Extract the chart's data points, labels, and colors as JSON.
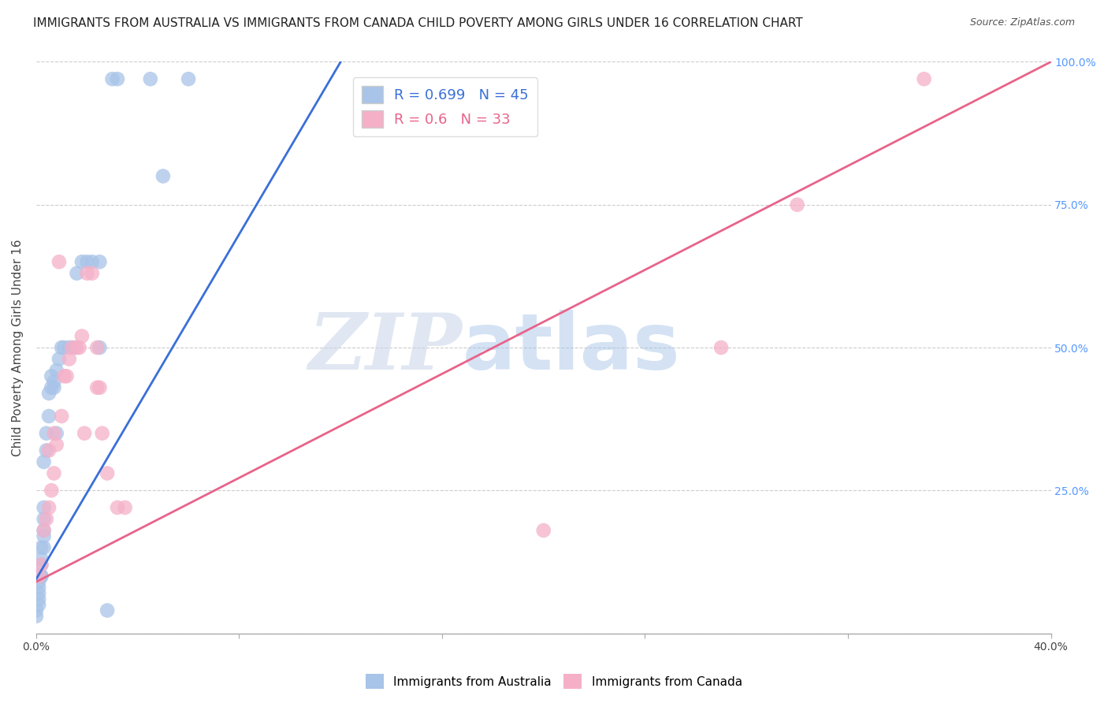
{
  "title": "IMMIGRANTS FROM AUSTRALIA VS IMMIGRANTS FROM CANADA CHILD POVERTY AMONG GIRLS UNDER 16 CORRELATION CHART",
  "source": "Source: ZipAtlas.com",
  "ylabel": "Child Poverty Among Girls Under 16",
  "xlim": [
    0.0,
    0.4
  ],
  "ylim": [
    0.0,
    1.0
  ],
  "xticks": [
    0.0,
    0.08,
    0.16,
    0.24,
    0.32,
    0.4
  ],
  "xticklabels": [
    "0.0%",
    "",
    "",
    "",
    "",
    "40.0%"
  ],
  "yticks": [
    0.0,
    0.25,
    0.5,
    0.75,
    1.0
  ],
  "australia_color": "#a8c4e8",
  "canada_color": "#f5b0c8",
  "trend_australia_color": "#3a6fd8",
  "trend_canada_color": "#e8638a",
  "watermark_zip": "ZIP",
  "watermark_atlas": "atlas",
  "R_australia": 0.699,
  "N_australia": 45,
  "R_canada": 0.6,
  "N_canada": 33,
  "australia_x": [
    0.0,
    0.0,
    0.001,
    0.001,
    0.001,
    0.001,
    0.001,
    0.002,
    0.002,
    0.002,
    0.002,
    0.002,
    0.003,
    0.003,
    0.003,
    0.003,
    0.003,
    0.003,
    0.004,
    0.004,
    0.005,
    0.005,
    0.006,
    0.006,
    0.007,
    0.007,
    0.008,
    0.008,
    0.009,
    0.01,
    0.011,
    0.013,
    0.015,
    0.016,
    0.018,
    0.02,
    0.022,
    0.025,
    0.025,
    0.028,
    0.03,
    0.032,
    0.045,
    0.05,
    0.06
  ],
  "australia_y": [
    0.03,
    0.04,
    0.05,
    0.06,
    0.07,
    0.08,
    0.09,
    0.1,
    0.1,
    0.12,
    0.13,
    0.15,
    0.15,
    0.17,
    0.18,
    0.2,
    0.22,
    0.3,
    0.32,
    0.35,
    0.38,
    0.42,
    0.43,
    0.45,
    0.43,
    0.44,
    0.35,
    0.46,
    0.48,
    0.5,
    0.5,
    0.5,
    0.5,
    0.63,
    0.65,
    0.65,
    0.65,
    0.5,
    0.65,
    0.04,
    0.97,
    0.97,
    0.97,
    0.8,
    0.97
  ],
  "canada_x": [
    0.001,
    0.002,
    0.003,
    0.004,
    0.005,
    0.005,
    0.006,
    0.007,
    0.007,
    0.008,
    0.009,
    0.01,
    0.011,
    0.012,
    0.013,
    0.014,
    0.016,
    0.017,
    0.018,
    0.019,
    0.02,
    0.022,
    0.024,
    0.024,
    0.025,
    0.026,
    0.028,
    0.032,
    0.035,
    0.2,
    0.27,
    0.3,
    0.35
  ],
  "canada_y": [
    0.1,
    0.12,
    0.18,
    0.2,
    0.22,
    0.32,
    0.25,
    0.28,
    0.35,
    0.33,
    0.65,
    0.38,
    0.45,
    0.45,
    0.48,
    0.5,
    0.5,
    0.5,
    0.52,
    0.35,
    0.63,
    0.63,
    0.43,
    0.5,
    0.43,
    0.35,
    0.28,
    0.22,
    0.22,
    0.18,
    0.5,
    0.75,
    0.97
  ],
  "trend_aus_x0": 0.0,
  "trend_aus_y0": 0.095,
  "trend_aus_x1": 0.12,
  "trend_aus_y1": 1.0,
  "trend_can_x0": 0.0,
  "trend_can_y0": 0.09,
  "trend_can_x1": 0.4,
  "trend_can_y1": 1.0,
  "background_color": "#ffffff",
  "grid_color": "#cccccc",
  "title_fontsize": 11,
  "label_fontsize": 11,
  "tick_fontsize": 10,
  "legend_fontsize": 13
}
